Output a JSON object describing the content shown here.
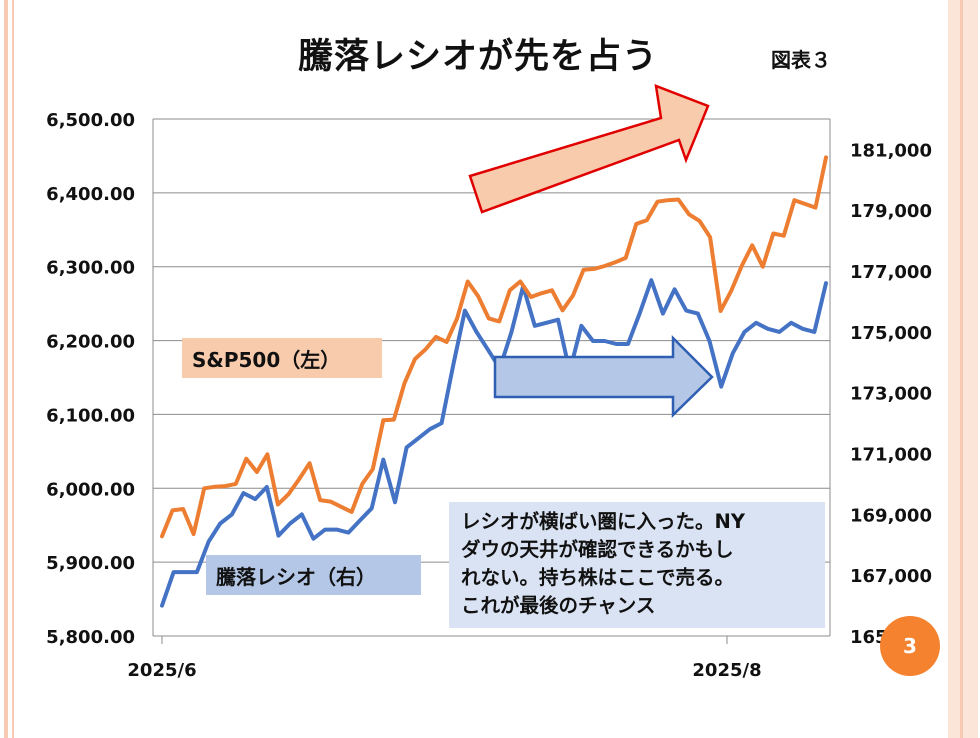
{
  "title": "騰落レシオが先を占う",
  "figure_label": "図表３",
  "page_number": "3",
  "note_lines": [
    "レシオが横ばい圏に入った。NY",
    "ダウの天井が確認できるかもし",
    "れない。持ち株はここで売る。",
    "これが最後のチャンス"
  ],
  "colors": {
    "sp500": "#ed7d31",
    "ratio": "#4472c4",
    "sp500_label_bg": "#f8cbad",
    "ratio_label_bg": "#b4c7e7",
    "note_bg": "#dae3f3",
    "up_arrow_fill": "#f8cbad",
    "up_arrow_stroke": "#e00000",
    "flat_arrow_fill": "#b4c7e7",
    "flat_arrow_stroke": "#2f5fb3",
    "page_badge": "#f5822f"
  },
  "chart_data": {
    "type": "line",
    "x_tick_labels": [
      "2025/6",
      "2025/8"
    ],
    "left_axis": {
      "ylim": [
        5800,
        6500
      ],
      "ticks": [
        "5,800.00",
        "5,900.00",
        "6,000.00",
        "6,100.00",
        "6,200.00",
        "6,300.00",
        "6,400.00",
        "6,500.00"
      ]
    },
    "right_axis": {
      "ylim": [
        165000,
        182000
      ],
      "ticks": [
        "165,000",
        "167,000",
        "169,000",
        "171,000",
        "173,000",
        "175,000",
        "177,000",
        "179,000",
        "181,000"
      ]
    },
    "grid": true,
    "series": [
      {
        "name": "S&P500（左）",
        "axis": "left",
        "values": [
          5935,
          5970,
          5972,
          5938,
          6000,
          6002,
          6003,
          6006,
          6040,
          6022,
          6046,
          5978,
          5992,
          6012,
          6034,
          5984,
          5982,
          5975,
          5968,
          6006,
          6026,
          6092,
          6093,
          6142,
          6175,
          6188,
          6205,
          6198,
          6230,
          6280,
          6260,
          6230,
          6226,
          6268,
          6280,
          6259,
          6264,
          6268,
          6241,
          6261,
          6296,
          6297,
          6301,
          6306,
          6312,
          6358,
          6363,
          6388,
          6390,
          6391,
          6371,
          6362,
          6340,
          6240,
          6267,
          6301,
          6329,
          6300,
          6345,
          6342,
          6390,
          6385,
          6380,
          6448
        ]
      },
      {
        "name": "騰落レシオ（右）",
        "axis": "right",
        "values": [
          166000,
          167100,
          167100,
          167100,
          168100,
          168700,
          169000,
          169700,
          169500,
          169900,
          168300,
          168700,
          169000,
          168200,
          168500,
          168500,
          168400,
          168800,
          169200,
          170800,
          169400,
          171200,
          171500,
          171800,
          172000,
          173900,
          175700,
          175000,
          174400,
          173800,
          175000,
          176500,
          175200,
          175300,
          175400,
          173700,
          175200,
          174700,
          174700,
          174600,
          174600,
          175600,
          176700,
          175600,
          176400,
          175700,
          175600,
          174700,
          173200,
          174300,
          175000,
          175300,
          175100,
          175000,
          175300,
          175100,
          175000,
          176600
        ]
      }
    ]
  }
}
